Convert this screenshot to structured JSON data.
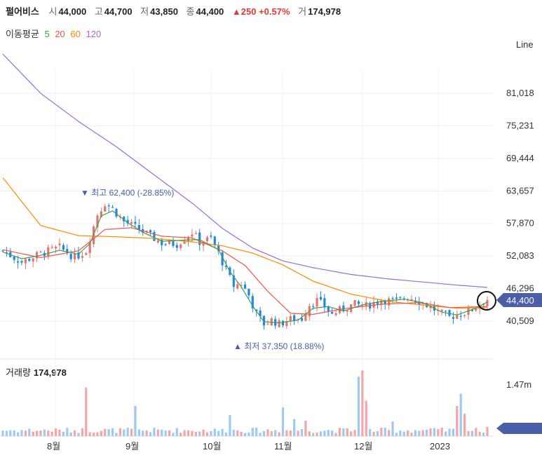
{
  "header": {
    "name": "펄어비스",
    "open_label": "시",
    "open": "44,000",
    "high_label": "고",
    "high": "44,700",
    "low_label": "저",
    "low": "43,850",
    "close_label": "종",
    "close": "44,400",
    "change": "▲250 +0.57%",
    "volume_label": "거",
    "volume": "174,978"
  },
  "ma_legend": {
    "label": "이동평균",
    "ma5": "5",
    "ma20": "20",
    "ma60": "60",
    "ma120": "120"
  },
  "chart_type_label": "Line",
  "volume_panel": {
    "label": "거래량",
    "value": "174,978",
    "axis_tick": "1.47m"
  },
  "colors": {
    "up": "#e57373",
    "down": "#1e88e5",
    "ma5": "#43a047",
    "ma20": "#ef5350",
    "ma60": "#fb8c00",
    "ma120": "#9c6ade",
    "price_tag": "#4a5fa8",
    "vol_up": "#f4a6a6",
    "vol_down": "#9ccaf2"
  },
  "chart_data": {
    "type": "candlestick",
    "y_ticks": [
      "81,018",
      "75,231",
      "69,444",
      "63,657",
      "57,870",
      "52,083",
      "46,296",
      "40,509"
    ],
    "y_tick_values": [
      81018,
      75231,
      69444,
      63657,
      57870,
      52083,
      46296,
      40509
    ],
    "x_ticks": [
      "8월",
      "9월",
      "10월",
      "11월",
      "12월",
      "2023"
    ],
    "last_price": "44,400",
    "annotations": {
      "high": "▼ 최고 62,400 (-28.85%)",
      "low": "▲ 최저 37,350 (18.88%)"
    },
    "anchors": [
      [
        0,
        53000
      ],
      [
        5,
        51000
      ],
      [
        10,
        52500
      ],
      [
        15,
        53600
      ],
      [
        19,
        51800
      ],
      [
        22,
        53000
      ],
      [
        25,
        59500
      ],
      [
        27,
        61500
      ],
      [
        29,
        60500
      ],
      [
        32,
        58200
      ],
      [
        35,
        57200
      ],
      [
        38,
        56000
      ],
      [
        42,
        54400
      ],
      [
        46,
        54200
      ],
      [
        50,
        56300
      ],
      [
        52,
        54600
      ],
      [
        55,
        55200
      ],
      [
        57,
        52600
      ],
      [
        59,
        49500
      ],
      [
        61,
        46800
      ],
      [
        63,
        47200
      ],
      [
        65,
        45100
      ],
      [
        67,
        41700
      ],
      [
        69,
        40000
      ],
      [
        71,
        40700
      ],
      [
        73,
        40000
      ],
      [
        76,
        40800
      ],
      [
        79,
        41000
      ],
      [
        81,
        43500
      ],
      [
        83,
        44200
      ],
      [
        85,
        43100
      ],
      [
        87,
        41700
      ],
      [
        90,
        42800
      ],
      [
        93,
        43500
      ],
      [
        96,
        43200
      ],
      [
        100,
        44300
      ],
      [
        104,
        44000
      ],
      [
        107,
        44900
      ],
      [
        110,
        44100
      ],
      [
        113,
        43000
      ],
      [
        116,
        41800
      ],
      [
        118,
        41200
      ],
      [
        120,
        41700
      ],
      [
        123,
        42200
      ],
      [
        126,
        43500
      ],
      [
        128,
        44400
      ]
    ],
    "ma120_points": [
      [
        0,
        88000
      ],
      [
        10,
        81000
      ],
      [
        20,
        76000
      ],
      [
        30,
        71500
      ],
      [
        40,
        66500
      ],
      [
        50,
        61500
      ],
      [
        58,
        57000
      ],
      [
        66,
        53500
      ],
      [
        74,
        51200
      ],
      [
        82,
        50000
      ],
      [
        92,
        48800
      ],
      [
        102,
        48000
      ],
      [
        112,
        47400
      ],
      [
        120,
        46900
      ],
      [
        128,
        46500
      ]
    ],
    "ma60_points": [
      [
        0,
        66000
      ],
      [
        10,
        57500
      ],
      [
        20,
        55700
      ],
      [
        30,
        55500
      ],
      [
        40,
        55200
      ],
      [
        50,
        54600
      ],
      [
        58,
        53900
      ],
      [
        66,
        52600
      ],
      [
        74,
        50500
      ],
      [
        82,
        47600
      ],
      [
        92,
        45300
      ],
      [
        102,
        44000
      ],
      [
        112,
        43300
      ],
      [
        120,
        42800
      ],
      [
        128,
        42900
      ]
    ],
    "ma20_points": [
      [
        0,
        53200
      ],
      [
        10,
        51800
      ],
      [
        20,
        53000
      ],
      [
        27,
        56800
      ],
      [
        34,
        57100
      ],
      [
        42,
        55600
      ],
      [
        50,
        55300
      ],
      [
        58,
        53000
      ],
      [
        64,
        50400
      ],
      [
        70,
        45800
      ],
      [
        76,
        41900
      ],
      [
        82,
        41700
      ],
      [
        90,
        42700
      ],
      [
        100,
        43500
      ],
      [
        110,
        43800
      ],
      [
        118,
        42900
      ],
      [
        128,
        43100
      ]
    ],
    "ma5_points": [
      [
        0,
        52800
      ],
      [
        5,
        51600
      ],
      [
        10,
        52200
      ],
      [
        15,
        53100
      ],
      [
        20,
        52400
      ],
      [
        23,
        54300
      ],
      [
        26,
        59200
      ],
      [
        29,
        60100
      ],
      [
        33,
        58000
      ],
      [
        37,
        56300
      ],
      [
        42,
        54700
      ],
      [
        48,
        54900
      ],
      [
        52,
        55000
      ],
      [
        57,
        53200
      ],
      [
        60,
        49300
      ],
      [
        63,
        46600
      ],
      [
        66,
        43200
      ],
      [
        69,
        40400
      ],
      [
        73,
        40200
      ],
      [
        78,
        40700
      ],
      [
        82,
        42800
      ],
      [
        86,
        43100
      ],
      [
        90,
        42300
      ],
      [
        95,
        43400
      ],
      [
        100,
        44000
      ],
      [
        106,
        44400
      ],
      [
        111,
        43800
      ],
      [
        116,
        42100
      ],
      [
        120,
        41600
      ],
      [
        125,
        42800
      ],
      [
        128,
        43900
      ]
    ],
    "volume_spikes": [
      [
        22,
        0.63
      ],
      [
        35,
        0.39
      ],
      [
        60,
        0.27
      ],
      [
        74,
        0.37
      ],
      [
        77,
        0.22
      ],
      [
        80,
        0.2
      ],
      [
        94,
        0.77
      ],
      [
        95,
        0.85
      ],
      [
        96,
        0.46
      ],
      [
        103,
        0.19
      ],
      [
        120,
        0.39
      ],
      [
        121,
        0.55
      ],
      [
        122,
        0.29
      ],
      [
        128,
        0.12
      ]
    ],
    "ylim": [
      35000,
      88000
    ],
    "xlabel": "",
    "ylabel": ""
  }
}
